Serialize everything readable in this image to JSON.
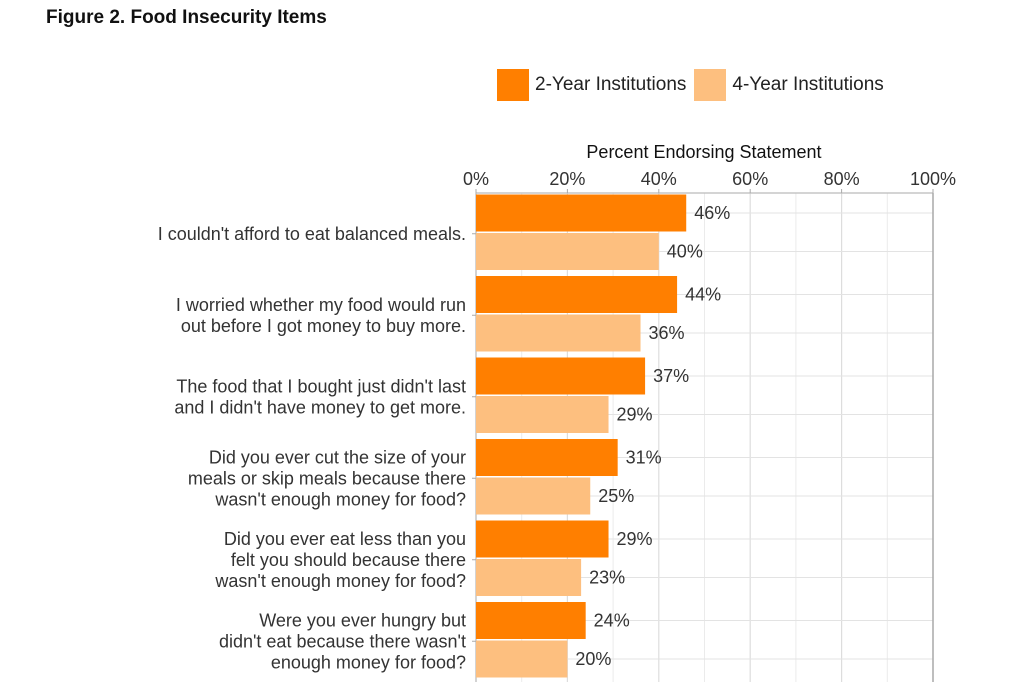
{
  "figure_title": "Figure 2. Food Insecurity Items",
  "legend": [
    {
      "label": "2-Year Institutions",
      "color": "#FF7F00"
    },
    {
      "label": "4-Year Institutions",
      "color": "#FDBF7F"
    }
  ],
  "chart_data": {
    "type": "bar",
    "orientation": "horizontal",
    "title": "Figure 2. Food Insecurity Items",
    "xlabel": "Percent Endorsing Statement",
    "ylabel": "",
    "xlim": [
      0,
      100
    ],
    "x_ticks": [
      "0%",
      "20%",
      "40%",
      "60%",
      "80%",
      "100%"
    ],
    "x_tick_values": [
      0,
      20,
      40,
      60,
      80,
      100
    ],
    "x_axis_position": "top",
    "grid": true,
    "legend_position": "top-right",
    "categories": [
      [
        "I couldn't afford to eat balanced meals."
      ],
      [
        "I worried whether my food would run",
        "out before I got money to buy more."
      ],
      [
        "The food that I bought just didn't last",
        "and I didn't have money to get more."
      ],
      [
        "Did you ever cut the size of your",
        "meals or skip meals because there",
        "wasn't enough money for food?"
      ],
      [
        "Did you ever eat less than you",
        "felt you should because there",
        "wasn't enough money for food?"
      ],
      [
        "Were you ever hungry but",
        "didn't eat because there wasn't",
        "enough money for food?"
      ]
    ],
    "series": [
      {
        "name": "2-Year Institutions",
        "color": "#FF7F00",
        "values": [
          46,
          44,
          37,
          31,
          29,
          24
        ],
        "labels": [
          "46%",
          "44%",
          "37%",
          "31%",
          "29%",
          "24%"
        ]
      },
      {
        "name": "4-Year Institutions",
        "color": "#FDBF7F",
        "values": [
          40,
          36,
          29,
          25,
          23,
          20
        ],
        "labels": [
          "40%",
          "36%",
          "29%",
          "25%",
          "23%",
          "20%"
        ]
      }
    ]
  }
}
